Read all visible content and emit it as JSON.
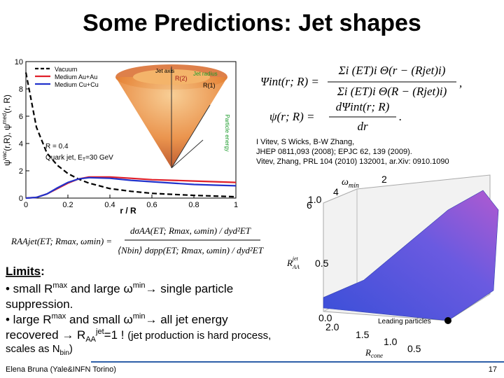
{
  "title": "Some Predictions: Jet shapes",
  "plot": {
    "type": "line",
    "x_label": "r / R",
    "y_label": [
      "ψ",
      "vac",
      "(r,R), ψ",
      "med",
      "(r, R)"
    ],
    "x": [
      0,
      0.05,
      0.1,
      0.15,
      0.2,
      0.25,
      0.3,
      0.4,
      0.5,
      0.6,
      0.7,
      0.8,
      0.9,
      1.0
    ],
    "series": [
      {
        "name": "Vacuum",
        "color": "#000000",
        "dash": true,
        "values": [
          9.2,
          5.2,
          3.3,
          2.4,
          1.8,
          1.4,
          1.1,
          0.7,
          0.5,
          0.35,
          0.27,
          0.2,
          0.15,
          0.1
        ]
      },
      {
        "name": "Medium Au+Au",
        "color": "#e0202a",
        "values": [
          0,
          0.05,
          0.3,
          0.7,
          1.1,
          1.4,
          1.55,
          1.55,
          1.45,
          1.35,
          1.3,
          1.25,
          1.2,
          1.15
        ]
      },
      {
        "name": "Medium Cu+Cu",
        "color": "#2233cc",
        "values": [
          0,
          0.05,
          0.3,
          0.75,
          1.15,
          1.4,
          1.5,
          1.45,
          1.3,
          1.2,
          1.1,
          1.0,
          0.95,
          0.9
        ]
      }
    ],
    "xlim": [
      0,
      1
    ],
    "xticks": [
      0,
      0.2,
      0.4,
      0.6,
      0.8,
      1
    ],
    "ylim": [
      0,
      10
    ],
    "yticks": [
      0,
      2,
      4,
      6,
      8,
      10
    ],
    "annotations": [
      "R = 0.4",
      "Quark jet, E",
      "T",
      "=30 GeV"
    ],
    "inset_labels": [
      "Jet axis",
      "Jet radius",
      "R(2)",
      "R(1)",
      "Particle energy"
    ]
  },
  "formulas": {
    "psi_int_lhs": "Ψint(r; R) =",
    "psi_int_num": "Σi (ET)i Θ(r − (Rjet)i)",
    "psi_int_den": "Σi (ET)i Θ(R − (Rjet)i)",
    "psi_int_end": ",",
    "psi_lhs": "ψ(r; R) =",
    "psi_num": "dΨint(r; R)",
    "psi_den": "dr",
    "psi_end": ".",
    "raa_lhs": "RAAjet(ET; Rmax, ωmin) =",
    "raa_num": "dσAA(ET; Rmax, ωmin) / dyd²ET",
    "raa_den": "⟨Nbin⟩ dσpp(ET; Rmax, ωmin) / dyd²ET"
  },
  "reference": [
    "I Vitev, S Wicks, B-W Zhang,",
    "JHEP 0811,093 (2008); EPJC 62, 139 (2009).",
    "Vitev, Zhang, PRL 104 (2010) 132001,  ar.Xiv: 0910.1090"
  ],
  "limits": {
    "heading": "Limits",
    "colon": ":",
    "line1": [
      "• small R",
      "max",
      " and large ω",
      "min",
      "→ single particle"
    ],
    "line2": "suppression.",
    "line3": [
      "• large R",
      "max",
      " and small ω",
      "min",
      "→ all jet energy"
    ],
    "line4": [
      "recovered → R",
      "AA",
      "jet",
      "=1 ! ",
      "(jet production is hard process,"
    ],
    "line5": [
      "scales as N",
      "bin",
      ")"
    ]
  },
  "plot3d": {
    "omega_label": [
      "ω",
      "min"
    ],
    "omega_ticks": [
      "2",
      "4",
      "6"
    ],
    "raa_label": [
      "R",
      "AA",
      "jet"
    ],
    "raa_ticks": [
      "1.0",
      "0.5",
      "0.0"
    ],
    "rcone_label": [
      "R",
      "cone"
    ],
    "rcone_ticks": [
      "2.0",
      "1.5",
      "1.0",
      "0.5"
    ],
    "leading": "Leading particles"
  },
  "footer": {
    "author": "Elena Bruna (Yale&INFN Torino)",
    "page": "17"
  }
}
